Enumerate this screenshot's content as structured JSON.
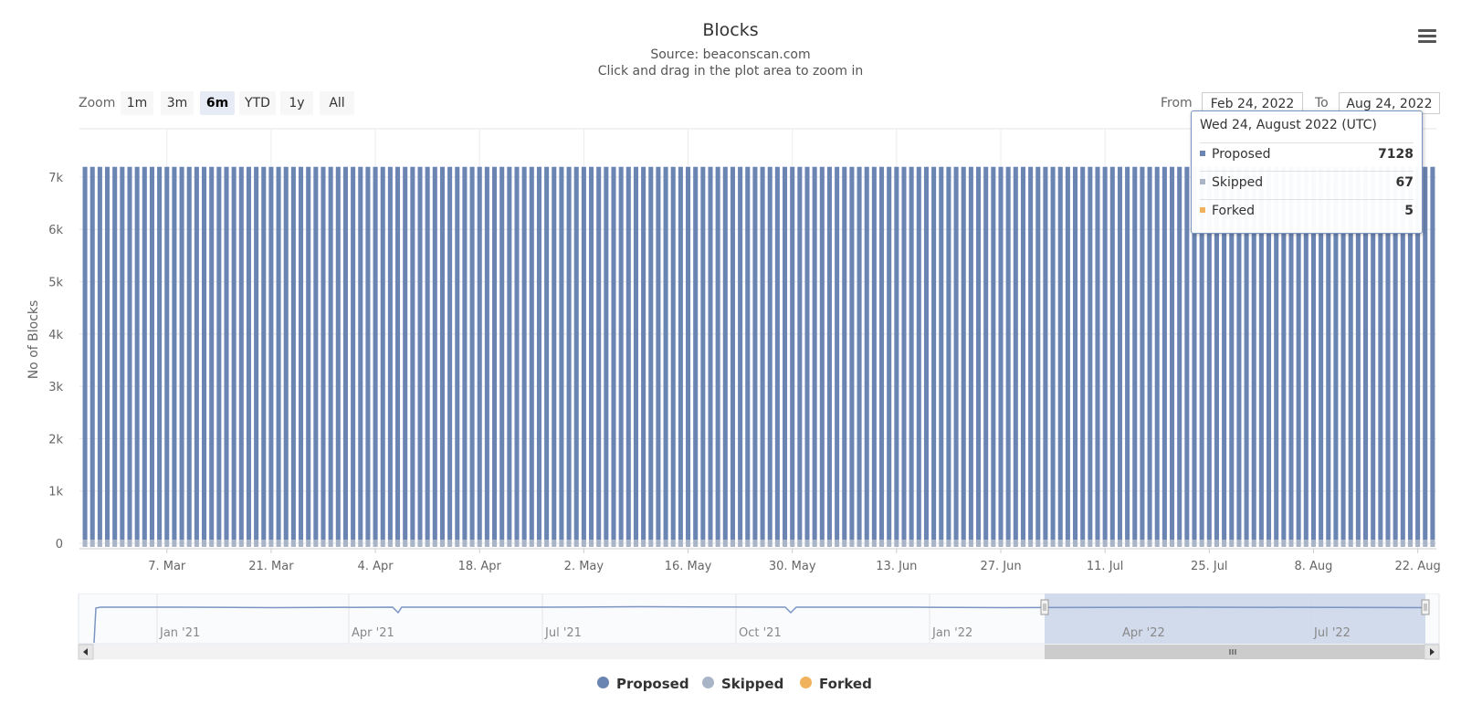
{
  "chart_data": {
    "type": "bar",
    "title": "Blocks",
    "subtitle": "Source: beaconscan.com",
    "instruction": "Click and drag in the plot area to zoom in",
    "ylabel": "No of Blocks",
    "ylim": [
      0,
      7200
    ],
    "yticks": [
      "0",
      "1k",
      "2k",
      "3k",
      "4k",
      "5k",
      "6k",
      "7k"
    ],
    "xticks": [
      "7. Mar",
      "21. Mar",
      "4. Apr",
      "18. Apr",
      "2. May",
      "16. May",
      "30. May",
      "13. Jun",
      "27. Jun",
      "11. Jul",
      "25. Jul",
      "8. Aug",
      "22. Aug"
    ],
    "x_range": [
      "2022-02-24",
      "2022-08-24"
    ],
    "stacked": true,
    "series": [
      {
        "name": "Proposed",
        "color": "#6b85b3",
        "approx_daily_value": 7128
      },
      {
        "name": "Skipped",
        "color": "#a9b4c6",
        "approx_daily_value": 67
      },
      {
        "name": "Forked",
        "color": "#f0b25c",
        "approx_daily_value": 5
      }
    ],
    "grid": true,
    "legend_position": "bottom-center"
  },
  "zoom": {
    "label": "Zoom",
    "buttons": [
      "1m",
      "3m",
      "6m",
      "YTD",
      "1y",
      "All"
    ],
    "active": "6m"
  },
  "range": {
    "from_label": "From",
    "from_value": "Feb 24, 2022",
    "to_label": "To",
    "to_value": "Aug 24, 2022"
  },
  "tooltip": {
    "header": "Wed 24, August 2022 (UTC)",
    "rows": [
      {
        "name": "Proposed",
        "value": "7128",
        "color": "#6b85b3"
      },
      {
        "name": "Skipped",
        "value": "67",
        "color": "#a9b4c6"
      },
      {
        "name": "Forked",
        "value": "5",
        "color": "#f0b25c"
      }
    ]
  },
  "navigator": {
    "labels": [
      "Jan '21",
      "Apr '21",
      "Jul '21",
      "Oct '21",
      "Jan '22",
      "Apr '22",
      "Jul '22"
    ]
  },
  "legend": [
    {
      "name": "Proposed",
      "color": "#6b85b3"
    },
    {
      "name": "Skipped",
      "color": "#a9b4c6"
    },
    {
      "name": "Forked",
      "color": "#f0b25c"
    }
  ],
  "icons": {
    "menu": "hamburger-menu-icon",
    "scroll_left": "arrow-left-icon",
    "scroll_right": "arrow-right-icon",
    "scroll_grip": "grip-icon"
  }
}
